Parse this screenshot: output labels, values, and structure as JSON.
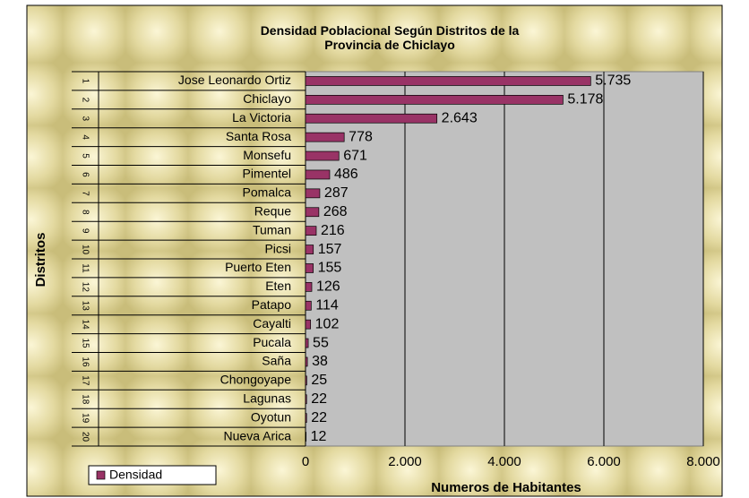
{
  "chart_data": {
    "type": "bar",
    "orientation": "horizontal",
    "title": "Densidad Poblacional Según Distritos de la Provincia de Chiclayo",
    "groups": [
      "1",
      "2",
      "3",
      "4",
      "5",
      "6",
      "7",
      "8",
      "9",
      "10",
      "11",
      "12",
      "13",
      "14",
      "15",
      "16",
      "17",
      "18",
      "19",
      "20"
    ],
    "categories": [
      "Jose Leonardo Ortiz",
      "Chiclayo",
      "La Victoria",
      "Santa Rosa",
      "Monsefu",
      "Pimentel",
      "Pomalca",
      "Reque",
      "Tuman",
      "Picsi",
      "Puerto Eten",
      "Eten",
      "Patapo",
      "Cayalti",
      "Pucala",
      "Saña",
      "Chongoyape",
      "Lagunas",
      "Oyotun",
      "Nueva Arica"
    ],
    "series": [
      {
        "name": "Densidad",
        "color": "#993366",
        "values": [
          5735,
          5178,
          2643,
          778,
          671,
          486,
          287,
          268,
          216,
          157,
          155,
          126,
          114,
          102,
          55,
          38,
          25,
          22,
          22,
          12
        ],
        "value_labels": [
          "5.735",
          "5.178",
          "2.643",
          "778",
          "671",
          "486",
          "287",
          "268",
          "216",
          "157",
          "155",
          "126",
          "114",
          "102",
          "55",
          "38",
          "25",
          "22",
          "22",
          "12"
        ]
      }
    ],
    "xlim": [
      0,
      8000
    ],
    "xticks": [
      0,
      {
        "value": 2000,
        "label": "2.000"
      },
      {
        "value": 4000,
        "label": "4.000"
      },
      {
        "value": 6000,
        "label": "6.000"
      },
      {
        "value": 8000,
        "label": "8.000"
      }
    ],
    "xlabel": "Numeros de Habitantes",
    "ylabel": "Distritos",
    "grid": true,
    "legend": "bottom-left",
    "plot_background": "#c0c0c0"
  }
}
